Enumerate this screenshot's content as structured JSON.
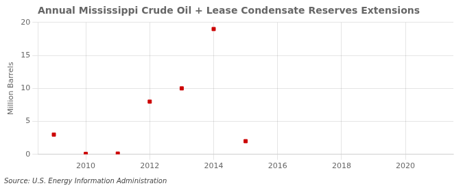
{
  "chart_data": {
    "type": "scatter",
    "title": "Annual Mississippi Crude Oil + Lease Condensate Reserves Extensions",
    "ylabel": "Million Barrels",
    "annotations": [
      "Source: U.S. Energy Information Administration"
    ],
    "x": [
      2009,
      2010,
      2011,
      2012,
      2013,
      2014,
      2015
    ],
    "values": [
      3.0,
      0.07,
      0.12,
      8.0,
      10.0,
      19.0,
      2.0
    ],
    "color": "#cc0000",
    "marker": "square",
    "xlim": [
      2008.5,
      2021.5
    ],
    "xticks": [
      2010,
      2012,
      2014,
      2016,
      2018,
      2020
    ],
    "ylim": [
      0,
      20
    ],
    "yticks": [
      0,
      5,
      10,
      15,
      20
    ],
    "grid": true
  }
}
